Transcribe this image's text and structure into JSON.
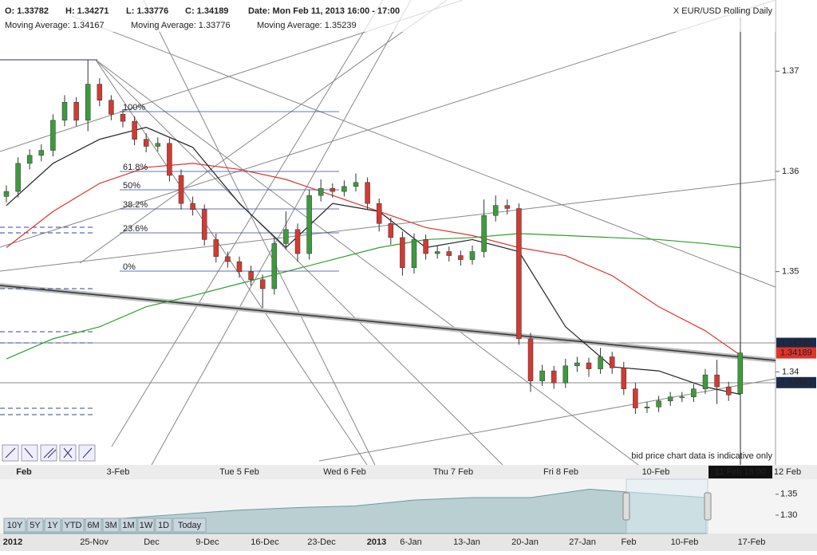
{
  "header": {
    "open": "O: 1.33782",
    "high": "H: 1.34271",
    "low": "L: 1.33776",
    "close": "C: 1.34189",
    "date": "Date: Mon Feb 11, 2013 16:00 - 17:00",
    "symbol": "X EUR/USD Rolling Daily"
  },
  "chart_data": {
    "type": "candlestick",
    "ylim": [
      1.3308,
      1.3771
    ],
    "yticks": [
      1.37,
      1.36,
      1.35,
      1.34
    ],
    "grid": false,
    "x_labels": [
      "Feb",
      "3-Feb",
      "Tue 5 Feb",
      "Wed 6 Feb",
      "Thu 7 Feb",
      "Fri 8 Feb",
      "10-Feb",
      "12 Feb"
    ],
    "cursor_label": "11 Feb 16:00",
    "up_color": "#3d9a3d",
    "down_color": "#d23a32",
    "candles": {
      "open": [
        1.3575,
        1.358,
        1.3608,
        1.3616,
        1.3621,
        1.3651,
        1.3669,
        1.3651,
        1.3687,
        1.3671,
        1.3657,
        1.365,
        1.3632,
        1.3625,
        1.3628,
        1.3596,
        1.3568,
        1.3562,
        1.3532,
        1.3515,
        1.351,
        1.35,
        1.3492,
        1.3483,
        1.3528,
        1.3542,
        1.3518,
        1.3576,
        1.3583,
        1.358,
        1.3585,
        1.3589,
        1.3568,
        1.3548,
        1.3534,
        1.3504,
        1.3532,
        1.3518,
        1.352,
        1.3516,
        1.3512,
        1.352,
        1.3556,
        1.3566,
        1.3563,
        1.3433,
        1.3391,
        1.3401,
        1.3389,
        1.3406,
        1.3409,
        1.3403,
        1.3415,
        1.3404,
        1.3383,
        1.3364,
        1.3365,
        1.3371,
        1.3375,
        1.3375,
        1.3383,
        1.3397,
        1.3385,
        1.33782
      ],
      "high": [
        1.3586,
        1.3614,
        1.3622,
        1.3627,
        1.3657,
        1.3676,
        1.3674,
        1.3711,
        1.3693,
        1.3676,
        1.3662,
        1.3655,
        1.3638,
        1.3634,
        1.3633,
        1.3602,
        1.3575,
        1.3567,
        1.3538,
        1.352,
        1.3515,
        1.3506,
        1.3497,
        1.3535,
        1.356,
        1.3548,
        1.3582,
        1.3592,
        1.3588,
        1.3591,
        1.3598,
        1.3594,
        1.3573,
        1.3554,
        1.354,
        1.3538,
        1.3537,
        1.3526,
        1.3525,
        1.3521,
        1.3526,
        1.3572,
        1.3576,
        1.3572,
        1.3568,
        1.3439,
        1.3407,
        1.3406,
        1.3413,
        1.3415,
        1.3414,
        1.3424,
        1.342,
        1.341,
        1.3389,
        1.337,
        1.3376,
        1.338,
        1.338,
        1.3388,
        1.3403,
        1.3412,
        1.339,
        1.34271
      ],
      "low": [
        1.3569,
        1.3574,
        1.3602,
        1.361,
        1.3615,
        1.3645,
        1.3645,
        1.364,
        1.3665,
        1.3651,
        1.3644,
        1.3626,
        1.3619,
        1.362,
        1.359,
        1.3562,
        1.3556,
        1.3526,
        1.3509,
        1.3504,
        1.3494,
        1.3486,
        1.3464,
        1.3477,
        1.3522,
        1.351,
        1.3512,
        1.357,
        1.3574,
        1.3575,
        1.358,
        1.3562,
        1.354,
        1.3527,
        1.3496,
        1.3498,
        1.3512,
        1.3513,
        1.351,
        1.3506,
        1.3507,
        1.3514,
        1.355,
        1.3557,
        1.3427,
        1.338,
        1.3386,
        1.3383,
        1.3384,
        1.34,
        1.3395,
        1.3398,
        1.3398,
        1.3377,
        1.3358,
        1.3359,
        1.336,
        1.3366,
        1.337,
        1.337,
        1.3378,
        1.3368,
        1.3371,
        1.33776
      ],
      "close": [
        1.358,
        1.3608,
        1.3616,
        1.3621,
        1.3651,
        1.3669,
        1.3651,
        1.3687,
        1.3671,
        1.3657,
        1.365,
        1.3632,
        1.3625,
        1.3628,
        1.3596,
        1.3568,
        1.3562,
        1.3532,
        1.3515,
        1.351,
        1.35,
        1.3492,
        1.3483,
        1.3528,
        1.3542,
        1.3518,
        1.3576,
        1.3583,
        1.358,
        1.3585,
        1.3589,
        1.3568,
        1.3548,
        1.3534,
        1.3504,
        1.3532,
        1.3518,
        1.352,
        1.3516,
        1.3512,
        1.352,
        1.3556,
        1.3566,
        1.3563,
        1.3433,
        1.3391,
        1.3401,
        1.3389,
        1.3406,
        1.3409,
        1.3403,
        1.3415,
        1.3404,
        1.3383,
        1.3364,
        1.3365,
        1.3371,
        1.3375,
        1.3375,
        1.3383,
        1.3397,
        1.3385,
        1.3377,
        1.34189
      ]
    },
    "series": [
      {
        "name": "Moving Average: 1.34167",
        "color": "#e0332b",
        "x": [
          0,
          4,
          8,
          12,
          16,
          20,
          24,
          28,
          32,
          36,
          40,
          44,
          48,
          52,
          56,
          60,
          63
        ],
        "values": [
          1.3524,
          1.356,
          1.3588,
          1.3604,
          1.3608,
          1.3602,
          1.3592,
          1.3576,
          1.356,
          1.3544,
          1.3536,
          1.3524,
          1.3516,
          1.3496,
          1.3465,
          1.3441,
          1.34167
        ]
      },
      {
        "name": "Moving Average: 1.33776",
        "color": "#222222",
        "x": [
          0,
          4,
          8,
          12,
          16,
          20,
          24,
          28,
          32,
          36,
          40,
          44,
          48,
          52,
          56,
          60,
          63
        ],
        "values": [
          1.3566,
          1.3608,
          1.3632,
          1.3644,
          1.3624,
          1.3568,
          1.3524,
          1.3568,
          1.356,
          1.3524,
          1.3532,
          1.352,
          1.3445,
          1.3405,
          1.3401,
          1.3385,
          1.33776
        ]
      },
      {
        "name": "Moving Average: 1.35239",
        "color": "#2f9e2f",
        "x": [
          0,
          4,
          8,
          12,
          16,
          20,
          24,
          28,
          32,
          36,
          40,
          44,
          48,
          52,
          56,
          60,
          63
        ],
        "values": [
          1.3413,
          1.3433,
          1.3445,
          1.3465,
          1.3476,
          1.3488,
          1.35,
          1.3512,
          1.3524,
          1.3532,
          1.3534,
          1.3538,
          1.3536,
          1.3534,
          1.3532,
          1.3528,
          1.35239
        ]
      }
    ],
    "price_labels": [
      {
        "value": 1.34285,
        "color": "#1c2a4a"
      },
      {
        "value": 1.34189,
        "color": "#e0332b"
      },
      {
        "value": 1.33893,
        "color": "#1c2a4a"
      }
    ],
    "fib_labels": [
      "100%",
      "61.8%",
      "50%",
      "38.2%",
      "23.6%",
      "0%"
    ],
    "disclaimer": "bid price chart data is indicative only",
    "navigator": {
      "type": "area",
      "values": [
        1.282,
        1.288,
        1.292,
        1.302,
        1.312,
        1.318,
        1.322,
        1.336,
        1.342,
        1.342,
        1.362,
        1.352,
        1.342
      ],
      "ylim": [
        1.256,
        1.386
      ],
      "yticks": [
        {
          "value": 1.35,
          "label": "1.35"
        },
        {
          "value": 1.3,
          "label": "1.30"
        }
      ],
      "x_labels": [
        "2012",
        "25-Nov",
        "Dec",
        "9-Dec",
        "16-Dec",
        "23-Dec",
        "2013",
        "6-Jan",
        "13-Jan",
        "20-Jan",
        "27-Jan",
        "Feb",
        "10-Feb",
        "17-Feb"
      ]
    },
    "range_buttons": [
      "10Y",
      "5Y",
      "1Y",
      "YTD",
      "6M",
      "3M",
      "1M",
      "1W",
      "1D",
      "Today"
    ]
  }
}
